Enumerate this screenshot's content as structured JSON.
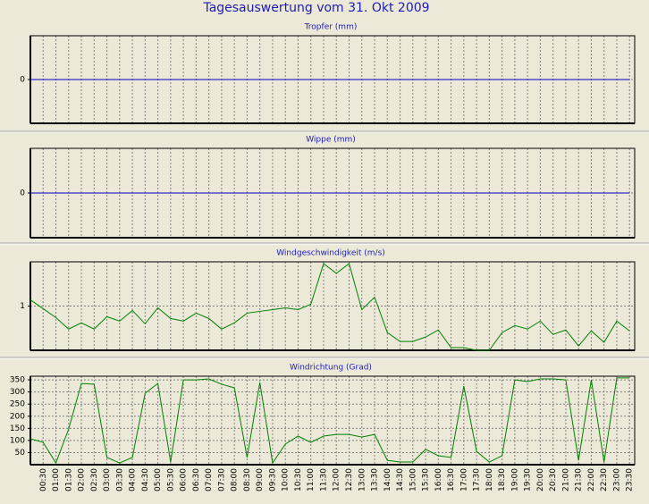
{
  "title": "Tagesauswertung vom 31. Okt 2009",
  "chart_data": [
    {
      "type": "line",
      "title": "Tropfer (mm)",
      "ylim": [
        -1,
        1
      ],
      "yticks": [
        0
      ],
      "grid": true,
      "series": [
        {
          "color": "#0000c0",
          "values": [
            0,
            0,
            0,
            0,
            0,
            0,
            0,
            0,
            0,
            0,
            0,
            0,
            0,
            0,
            0,
            0,
            0,
            0,
            0,
            0,
            0,
            0,
            0,
            0,
            0,
            0,
            0,
            0,
            0,
            0,
            0,
            0,
            0,
            0,
            0,
            0,
            0,
            0,
            0,
            0,
            0,
            0,
            0,
            0,
            0,
            0,
            0,
            0
          ]
        }
      ]
    },
    {
      "type": "line",
      "title": "Wippe (mm)",
      "ylim": [
        -1,
        1
      ],
      "yticks": [
        0
      ],
      "grid": true,
      "series": [
        {
          "color": "#0000c0",
          "values": [
            0,
            0,
            0,
            0,
            0,
            0,
            0,
            0,
            0,
            0,
            0,
            0,
            0,
            0,
            0,
            0,
            0,
            0,
            0,
            0,
            0,
            0,
            0,
            0,
            0,
            0,
            0,
            0,
            0,
            0,
            0,
            0,
            0,
            0,
            0,
            0,
            0,
            0,
            0,
            0,
            0,
            0,
            0,
            0,
            0,
            0,
            0,
            0
          ]
        }
      ]
    },
    {
      "type": "line",
      "title": "Windgeschwindigkeit (m/s)",
      "ylim": [
        0,
        2
      ],
      "yticks": [
        1
      ],
      "grid": true,
      "series": [
        {
          "color": "#008000",
          "values": [
            1.14,
            0.94,
            0.74,
            0.48,
            0.62,
            0.48,
            0.76,
            0.66,
            0.9,
            0.6,
            0.96,
            0.72,
            0.66,
            0.84,
            0.72,
            0.48,
            0.62,
            0.84,
            0.88,
            0.92,
            0.96,
            0.92,
            1.04,
            1.96,
            1.74,
            1.96,
            0.92,
            1.2,
            0.4,
            0.2,
            0.2,
            0.3,
            0.46,
            0.06,
            0.06,
            0,
            0,
            0.4,
            0.56,
            0.48,
            0.66,
            0.36,
            0.46,
            0.1,
            0.44,
            0.18,
            0.66,
            0.44
          ]
        }
      ]
    },
    {
      "type": "line",
      "title": "Windrichtung (Grad)",
      "ylim": [
        0,
        365
      ],
      "yticks": [
        50,
        100,
        150,
        200,
        250,
        300,
        350
      ],
      "grid": true,
      "categories": [
        null,
        "00:30",
        "01:00",
        "01:30",
        "02:00",
        "02:30",
        "03:00",
        "03:30",
        "04:00",
        "04:30",
        "05:00",
        "05:30",
        "06:00",
        "06:30",
        "07:00",
        "07:30",
        "08:00",
        "08:30",
        "09:00",
        "09:30",
        "10:00",
        "10:30",
        "11:00",
        "11:30",
        "12:00",
        "12:30",
        "13:00",
        "13:30",
        "14:00",
        "14:30",
        "15:00",
        "15:30",
        "16:00",
        "16:30",
        "17:00",
        "17:30",
        "18:00",
        "18:30",
        "19:00",
        "19:30",
        "20:00",
        "20:30",
        "21:00",
        "21:30",
        "22:00",
        "22:30",
        "23:00",
        "23:30"
      ],
      "series": [
        {
          "color": "#008000",
          "values": [
            107,
            92,
            7,
            147,
            335,
            332,
            30,
            7,
            30,
            295,
            335,
            11,
            350,
            350,
            354,
            332,
            317,
            30,
            339,
            7,
            85,
            118,
            92,
            118,
            125,
            125,
            114,
            125,
            18,
            11,
            11,
            63,
            37,
            30,
            324,
            55,
            11,
            37,
            350,
            343,
            354,
            354,
            350,
            18,
            350,
            11,
            358,
            358
          ]
        }
      ]
    }
  ]
}
